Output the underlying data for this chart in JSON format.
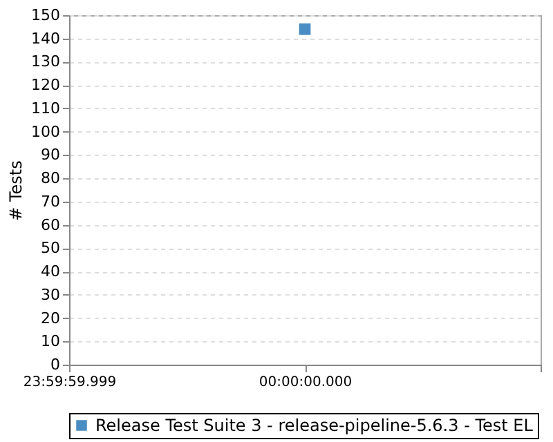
{
  "chart_data": {
    "type": "scatter",
    "ylabel": "# Tests",
    "categories": [
      "23:59:59.999",
      "00:00:00.000",
      null
    ],
    "series": [
      {
        "name": "Release Test Suite 3 - release-pipeline-5.6.3 - Test EL",
        "color": "#4a8cc4",
        "values": [
          null,
          144,
          null
        ]
      }
    ],
    "ylim": [
      0,
      150
    ],
    "yticks": [
      0,
      10,
      20,
      30,
      40,
      50,
      60,
      70,
      80,
      90,
      100,
      110,
      120,
      130,
      140,
      150
    ],
    "grid": "y",
    "legend": "bottom",
    "marker": "square"
  }
}
